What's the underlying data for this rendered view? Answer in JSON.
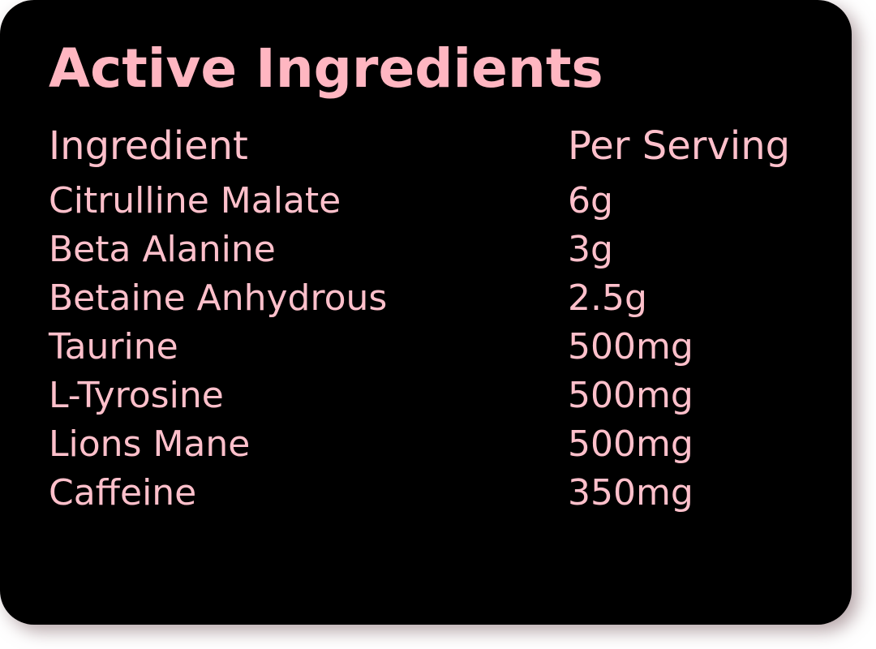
{
  "title": "Active Ingredients",
  "columns": [
    "Ingredient",
    "Per Serving"
  ],
  "rows": [
    [
      "Citrulline Malate",
      "6g"
    ],
    [
      "Beta Alanine",
      "3g"
    ],
    [
      "Betaine Anhydrous",
      "2.5g"
    ],
    [
      "Taurine",
      "500mg"
    ],
    [
      "L-Tyrosine",
      "500mg"
    ],
    [
      "Lions Mane",
      "500mg"
    ],
    [
      "Caffeine",
      "350mg"
    ]
  ],
  "colors": {
    "background": "#000000",
    "title": "#ffb6c1",
    "text": "#ffc0cb"
  }
}
